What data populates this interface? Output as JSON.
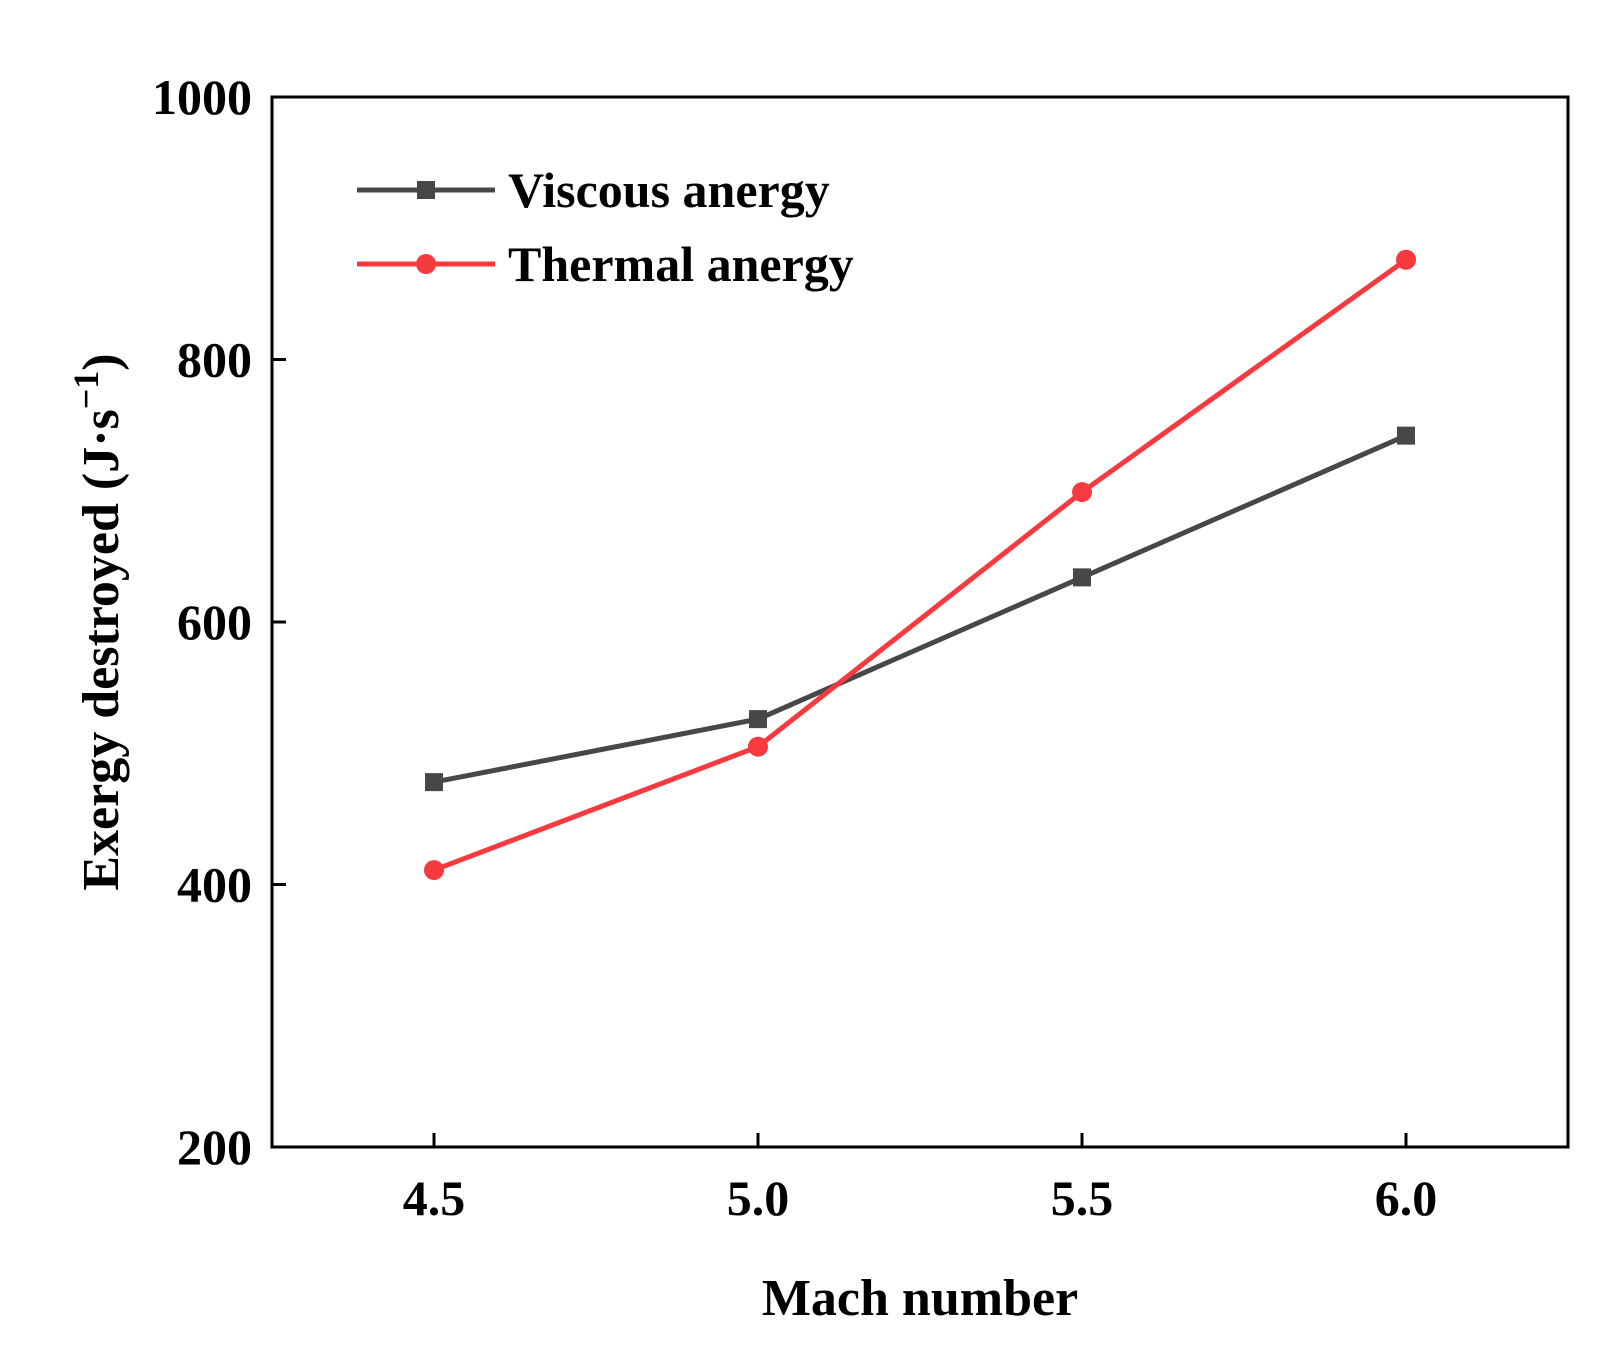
{
  "chart_data": {
    "type": "line",
    "title": "",
    "xlabel": "Mach number",
    "ylabel": "Exergy destroyed (J·s",
    "ylabel_superscript": "−1",
    "ylabel_close": ")",
    "x": [
      4.5,
      5.0,
      5.5,
      6.0
    ],
    "x_tick_labels": [
      "4.5",
      "5.0",
      "5.5",
      "6.0"
    ],
    "xlim": [
      4.25,
      6.25
    ],
    "y_ticks": [
      200,
      400,
      600,
      800,
      1000
    ],
    "y_tick_labels": [
      "200",
      "400",
      "600",
      "800",
      "1000"
    ],
    "ylim": [
      200,
      1000
    ],
    "grid": false,
    "legend_position": "top-left",
    "series": [
      {
        "name": "Viscous anergy",
        "values": [
          478,
          526,
          634,
          742
        ],
        "color": "#474747",
        "marker": "square"
      },
      {
        "name": "Thermal anergy",
        "values": [
          411,
          505,
          699,
          876
        ],
        "color": "#f63a3f",
        "marker": "circle"
      }
    ]
  }
}
